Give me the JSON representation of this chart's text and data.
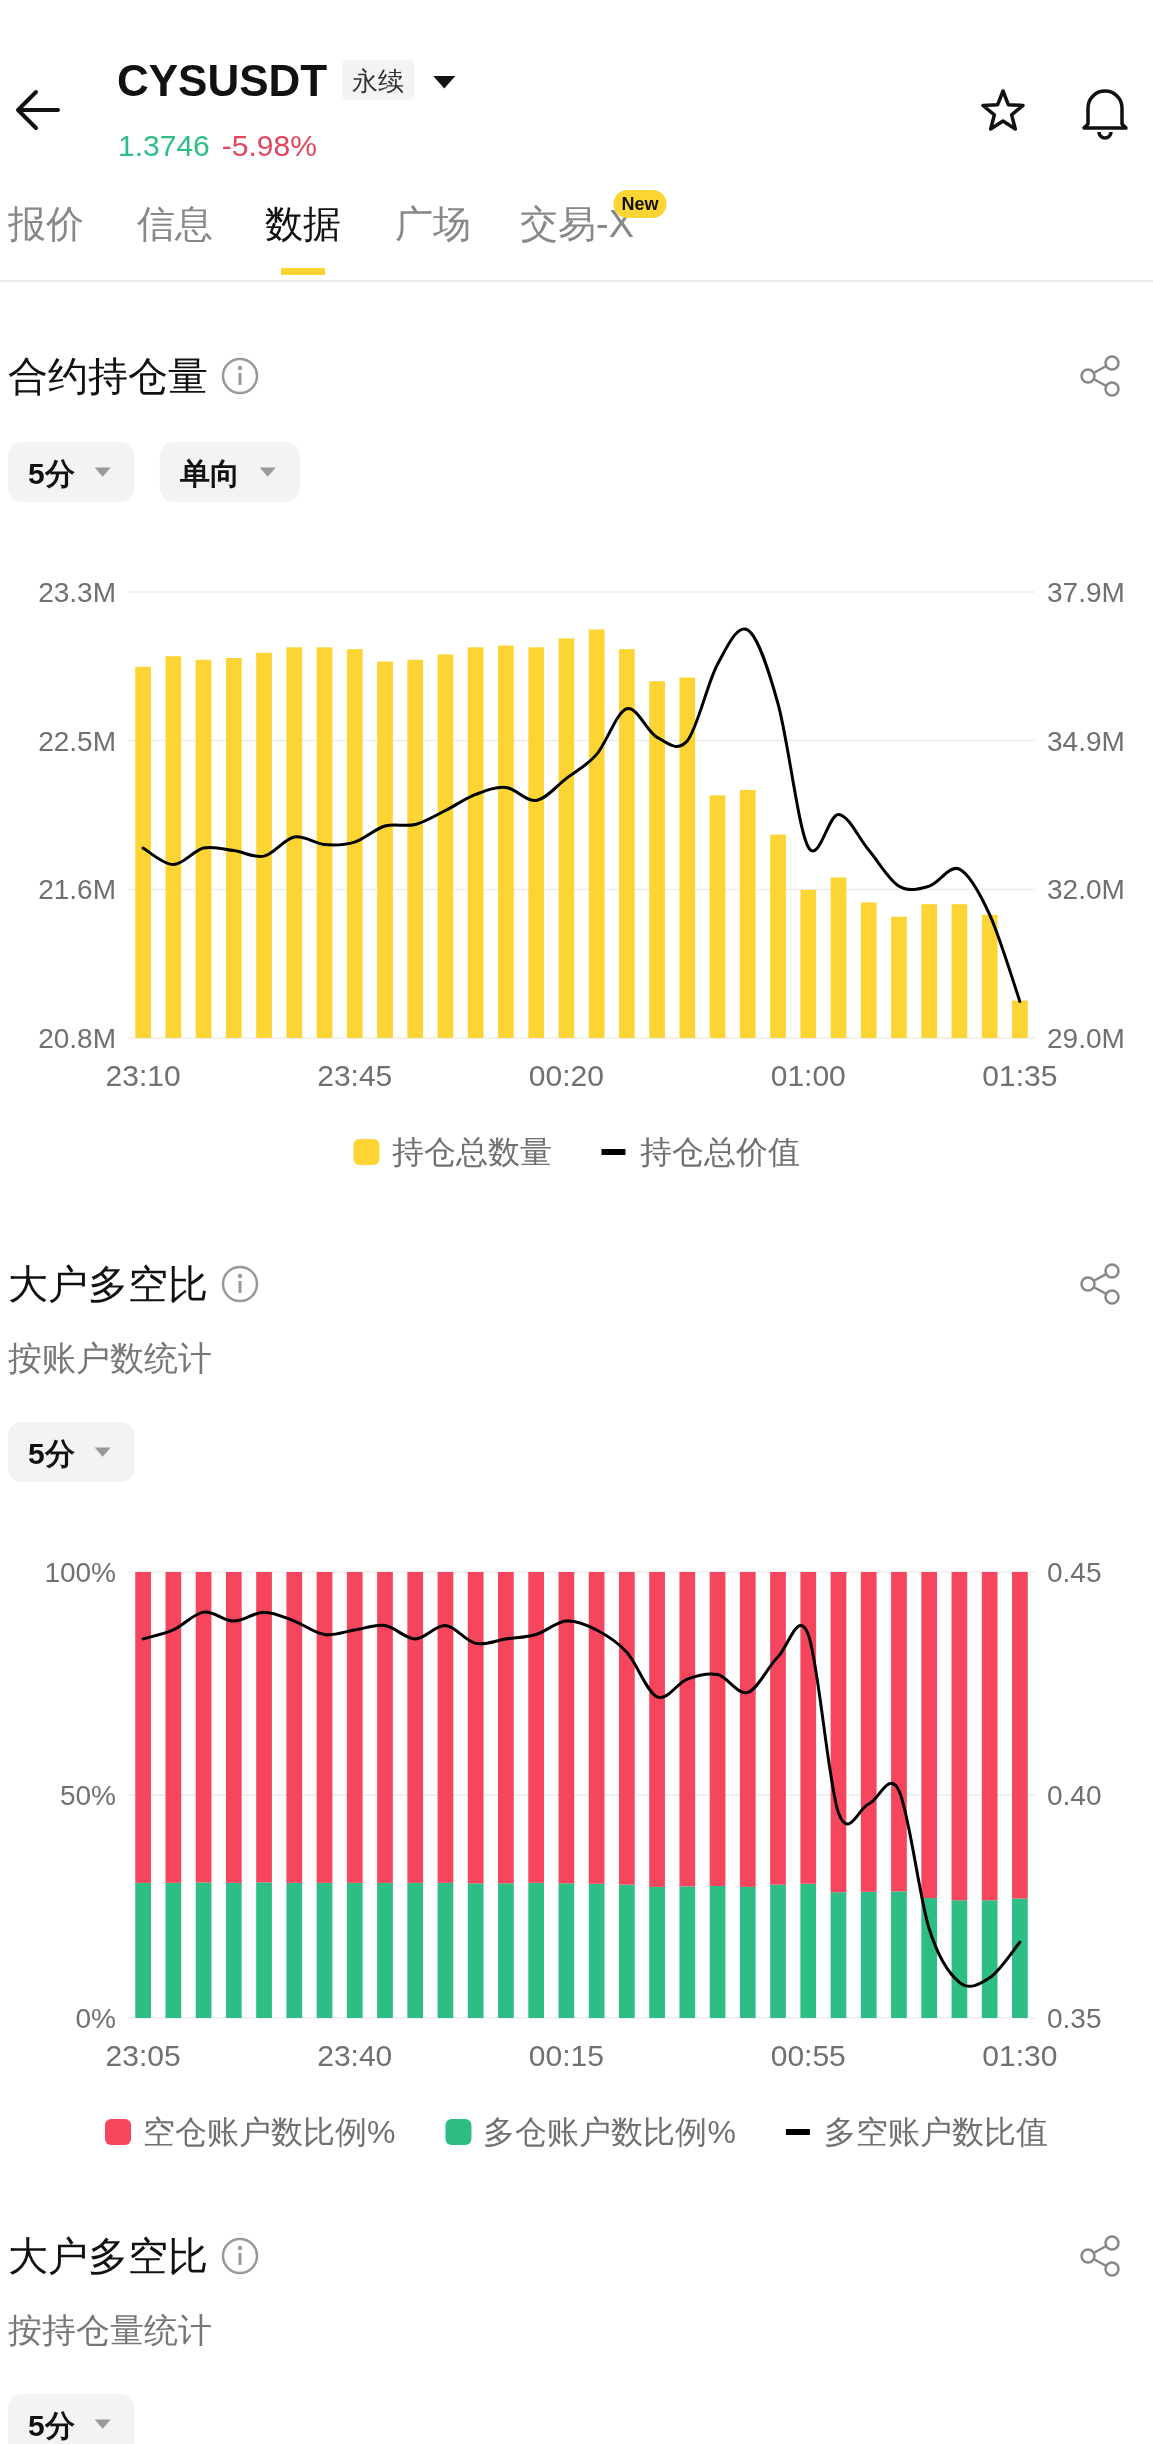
{
  "chart_data": [
    {
      "type": "other",
      "title": "CYSUSDT",
      "annotations": [
        "永续",
        "1.3746",
        "-5.98%",
        "报价",
        "信息",
        "数据",
        "广场",
        "交易-X",
        "New"
      ]
    },
    {
      "type": "bar",
      "title": "合约持仓量",
      "annotations": [
        "5分",
        "单向"
      ],
      "categories": [
        "23:10",
        null,
        null,
        null,
        null,
        null,
        null,
        "23:45",
        null,
        null,
        null,
        null,
        null,
        null,
        "00:20",
        null,
        null,
        null,
        null,
        null,
        null,
        null,
        "01:00",
        null,
        null,
        null,
        null,
        null,
        null,
        "01:35"
      ],
      "series": [
        {
          "name": "持仓总数量",
          "color": "#fcd535",
          "values": [
            22.88,
            22.94,
            22.92,
            22.93,
            22.96,
            22.99,
            22.99,
            22.98,
            22.91,
            22.92,
            22.95,
            22.99,
            23.0,
            22.99,
            23.04,
            23.09,
            22.98,
            22.8,
            22.82,
            22.16,
            22.19,
            21.94,
            21.63,
            21.7,
            21.56,
            21.48,
            21.55,
            21.55,
            21.49,
            21.01
          ]
        },
        {
          "name": "持仓总价值",
          "type": "line",
          "axis": "y2",
          "color": "#000000",
          "values": [
            32.79,
            32.46,
            32.79,
            32.74,
            32.63,
            33.01,
            32.86,
            32.91,
            33.23,
            33.26,
            33.54,
            33.86,
            34.0,
            33.74,
            34.18,
            34.66,
            35.57,
            35.0,
            34.93,
            36.46,
            37.14,
            35.67,
            32.81,
            33.46,
            32.75,
            32.03,
            32.03,
            32.37,
            31.46,
            29.73
          ]
        }
      ],
      "ylim": [
        20.8,
        23.3
      ],
      "yticks": [
        {
          "value": 20.8,
          "label": "20.8M"
        },
        {
          "value": 21.633,
          "label": "21.6M"
        },
        {
          "value": 22.467,
          "label": "22.5M"
        },
        {
          "value": 23.3,
          "label": "23.3M"
        }
      ],
      "y2lim": [
        29.0,
        37.9
      ],
      "y2ticks": [
        {
          "value": 29.0,
          "label": "29.0M"
        },
        {
          "value": 31.967,
          "label": "32.0M"
        },
        {
          "value": 34.933,
          "label": "34.9M"
        },
        {
          "value": 37.9,
          "label": "37.9M"
        }
      ],
      "grid": "y",
      "legend": "bottom"
    },
    {
      "type": "bar",
      "title": "大户多空比",
      "subtitle": "按账户数统计",
      "annotations": [
        "5分"
      ],
      "stacked": true,
      "categories": [
        "23:05",
        null,
        null,
        null,
        null,
        null,
        null,
        "23:40",
        null,
        null,
        null,
        null,
        null,
        null,
        "00:15",
        null,
        null,
        null,
        null,
        null,
        null,
        null,
        "00:55",
        null,
        null,
        null,
        null,
        null,
        null,
        "01:30"
      ],
      "series": [
        {
          "name": "多仓账户数比例%",
          "color": "#2ebd85",
          "values": [
            30.3,
            30.3,
            30.4,
            30.3,
            30.4,
            30.3,
            30.3,
            30.3,
            30.3,
            30.3,
            30.3,
            30.2,
            30.2,
            30.3,
            30.2,
            30.1,
            29.9,
            29.4,
            29.5,
            29.6,
            29.4,
            29.9,
            30.1,
            28.2,
            28.3,
            28.4,
            26.9,
            26.4,
            26.4,
            26.8
          ]
        },
        {
          "name": "空仓账户数比例%",
          "color": "#f6465d",
          "values": [
            69.7,
            69.7,
            69.6,
            69.7,
            69.6,
            69.7,
            69.7,
            69.7,
            69.7,
            69.7,
            69.7,
            69.8,
            69.8,
            69.7,
            69.8,
            69.9,
            70.1,
            70.6,
            70.5,
            70.4,
            70.6,
            70.1,
            69.9,
            71.8,
            71.7,
            71.6,
            73.1,
            73.6,
            73.6,
            73.2
          ]
        },
        {
          "name": "多空账户数比值",
          "type": "line",
          "axis": "y2",
          "color": "#000000",
          "values": [
            0.435,
            0.437,
            0.441,
            0.439,
            0.441,
            0.439,
            0.436,
            0.437,
            0.438,
            0.435,
            0.438,
            0.434,
            0.435,
            0.436,
            0.439,
            0.437,
            0.432,
            0.422,
            0.426,
            0.427,
            0.423,
            0.431,
            0.436,
            0.396,
            0.398,
            0.401,
            0.37,
            0.358,
            0.359,
            0.367
          ]
        }
      ],
      "ylim": [
        0,
        100
      ],
      "yticks": [
        {
          "value": 0,
          "label": "0%"
        },
        {
          "value": 50,
          "label": "50%"
        },
        {
          "value": 100,
          "label": "100%"
        }
      ],
      "y2lim": [
        0.35,
        0.45
      ],
      "y2ticks": [
        0.35,
        {
          "value": 0.4,
          "label": "0.40"
        },
        0.45
      ],
      "grid": "y",
      "legend": "bottom"
    },
    {
      "type": "other",
      "title": "大户多空比",
      "subtitle": "按持仓量统计",
      "annotations": [
        "5分"
      ]
    }
  ]
}
